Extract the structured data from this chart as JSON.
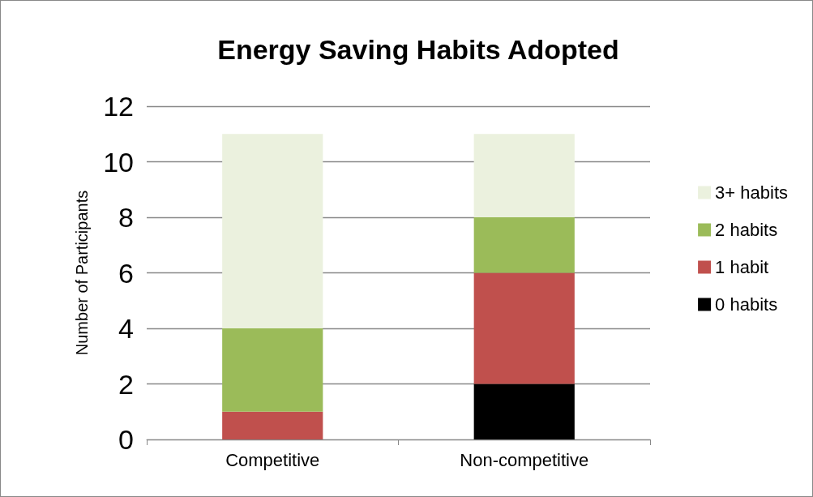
{
  "chart_data": {
    "type": "bar",
    "title": "Energy Saving Habits Adopted",
    "ylabel": "Number of Participants",
    "categories": [
      "Competitive",
      "Non-competitive"
    ],
    "stacked": true,
    "series": [
      {
        "name": "0 habits",
        "color": "#000000",
        "values": [
          0,
          2
        ]
      },
      {
        "name": "1 habit",
        "color": "#c0504d",
        "values": [
          1,
          4
        ]
      },
      {
        "name": "2 habits",
        "color": "#9bbb59",
        "values": [
          3,
          2
        ]
      },
      {
        "name": "3+ habits",
        "color": "#ebf1de",
        "values": [
          7,
          3
        ]
      }
    ],
    "ylim": [
      0,
      12
    ],
    "yticks": [
      0,
      2,
      4,
      6,
      8,
      10,
      12
    ],
    "grid": "y",
    "legend": "right"
  }
}
